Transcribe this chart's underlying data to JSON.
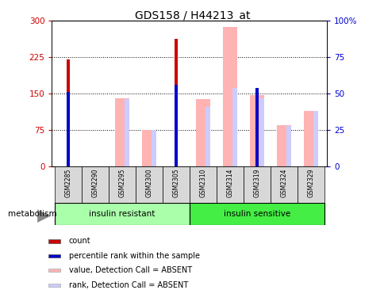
{
  "title": "GDS158 / H44213_at",
  "samples": [
    "GSM2285",
    "GSM2290",
    "GSM2295",
    "GSM2300",
    "GSM2305",
    "GSM2310",
    "GSM2314",
    "GSM2319",
    "GSM2324",
    "GSM2329"
  ],
  "count_values": [
    220,
    0,
    0,
    0,
    262,
    0,
    0,
    0,
    0,
    0
  ],
  "rank_values": [
    153,
    0,
    0,
    0,
    168,
    0,
    0,
    162,
    0,
    0
  ],
  "pink_values": [
    0,
    0,
    140,
    75,
    0,
    138,
    287,
    147,
    85,
    115
  ],
  "lavender_values": [
    0,
    0,
    138,
    75,
    0,
    122,
    162,
    140,
    83,
    115
  ],
  "ylim_left": [
    0,
    300
  ],
  "ylim_right": [
    0,
    100
  ],
  "yticks_left": [
    0,
    75,
    150,
    225,
    300
  ],
  "yticks_right": [
    0,
    25,
    50,
    75,
    100
  ],
  "yticklabels_right": [
    "0",
    "25",
    "50",
    "75",
    "100%"
  ],
  "group1_label": "insulin resistant",
  "group2_label": "insulin sensitive",
  "pathway_label": "metabolism",
  "legend_items": [
    "count",
    "percentile rank within the sample",
    "value, Detection Call = ABSENT",
    "rank, Detection Call = ABSENT"
  ],
  "legend_colors": [
    "#cc0000",
    "#0000cc",
    "#ffb3b3",
    "#ccccff"
  ],
  "count_color": "#cc0000",
  "rank_color": "#0000cc",
  "pink_color": "#ffb3b3",
  "lavender_color": "#ccccff",
  "group1_color": "#aaffaa",
  "group2_color": "#44ee44",
  "axis_color_left": "#cc0000",
  "axis_color_right": "#0000cc",
  "bg_color": "#ffffff",
  "grid_dotted_values": [
    75,
    150,
    225
  ]
}
